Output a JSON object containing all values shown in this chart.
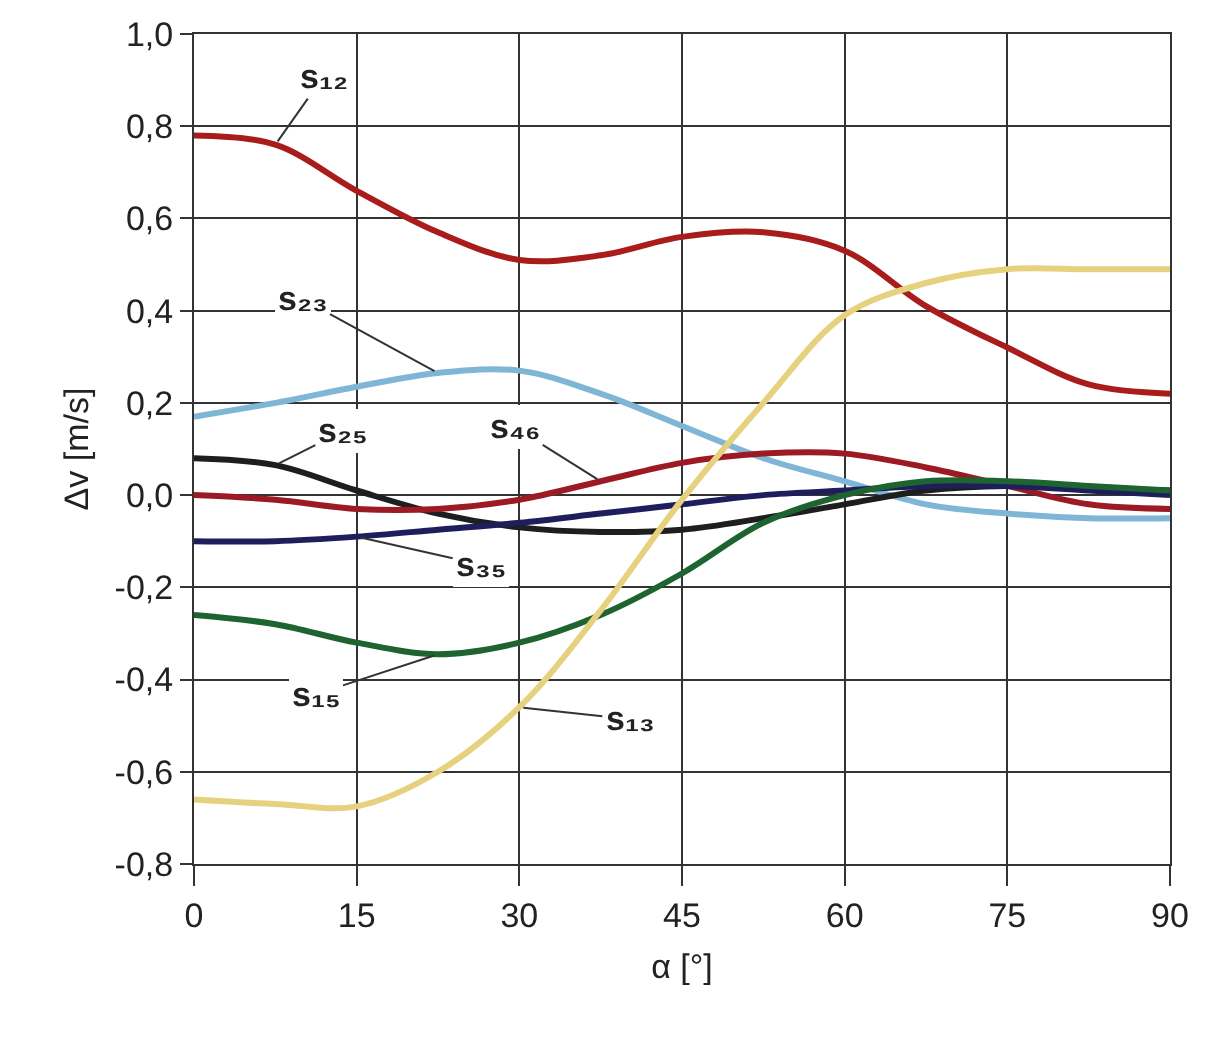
{
  "chart_data": {
    "type": "line",
    "xlabel": "α [°]",
    "ylabel": "Δv [m/s]",
    "x": [
      0,
      7.5,
      15,
      22.5,
      30,
      37.5,
      45,
      52.5,
      60,
      67.5,
      75,
      82.5,
      90
    ],
    "xlim": [
      0,
      90
    ],
    "xticks": [
      0,
      15,
      30,
      45,
      60,
      75,
      90
    ],
    "ylim": [
      -0.8,
      1.0
    ],
    "yticks": [
      {
        "value": -0.8,
        "label": "-0,8"
      },
      {
        "value": -0.6,
        "label": "-0,6"
      },
      {
        "value": -0.4,
        "label": "-0,4"
      },
      {
        "value": -0.2,
        "label": "-0,2"
      },
      {
        "value": 0,
        "label": "0,0"
      },
      {
        "value": 0.2,
        "label": "0,2"
      },
      {
        "value": 0.4,
        "label": "0,4"
      },
      {
        "value": 0.6,
        "label": "0,6"
      },
      {
        "value": 0.8,
        "label": "0,8"
      },
      {
        "value": 1.0,
        "label": "1,0"
      }
    ],
    "grid": true,
    "legend": false,
    "marker": "none",
    "line_style": "solid",
    "series": [
      {
        "name": "s₁₂",
        "color": "#a81c1c",
        "values": [
          0.78,
          0.76,
          0.66,
          0.57,
          0.51,
          0.52,
          0.56,
          0.57,
          0.53,
          0.41,
          0.32,
          0.24,
          0.22
        ]
      },
      {
        "name": "s₂₃",
        "color": "#7fb6d6",
        "values": [
          0.17,
          0.2,
          0.235,
          0.265,
          0.27,
          0.22,
          0.15,
          0.08,
          0.03,
          -0.02,
          -0.04,
          -0.05,
          -0.05
        ]
      },
      {
        "name": "s₂₅",
        "color": "#1e1e1e",
        "values": [
          0.08,
          0.065,
          0.01,
          -0.04,
          -0.07,
          -0.08,
          -0.075,
          -0.05,
          -0.02,
          0.01,
          0.02,
          0.015,
          0.01
        ]
      },
      {
        "name": "s₄₆",
        "color": "#9c1a24",
        "values": [
          0,
          -0.01,
          -0.03,
          -0.03,
          -0.01,
          0.03,
          0.07,
          0.09,
          0.09,
          0.06,
          0.02,
          -0.02,
          -0.03
        ]
      },
      {
        "name": "s₃₅",
        "color": "#1e1e5c",
        "values": [
          -0.1,
          -0.1,
          -0.09,
          -0.075,
          -0.06,
          -0.04,
          -0.02,
          0,
          0.01,
          0.02,
          0.02,
          0.01,
          0
        ]
      },
      {
        "name": "s₁₅",
        "color": "#1e6430",
        "values": [
          -0.26,
          -0.28,
          -0.32,
          -0.345,
          -0.32,
          -0.26,
          -0.17,
          -0.06,
          0,
          0.03,
          0.03,
          0.02,
          0.01
        ]
      },
      {
        "name": "s₁₃",
        "color": "#e6d27e",
        "values": [
          -0.66,
          -0.67,
          -0.675,
          -0.6,
          -0.46,
          -0.25,
          -0.01,
          0.2,
          0.39,
          0.46,
          0.49,
          0.49,
          0.49
        ]
      }
    ]
  }
}
